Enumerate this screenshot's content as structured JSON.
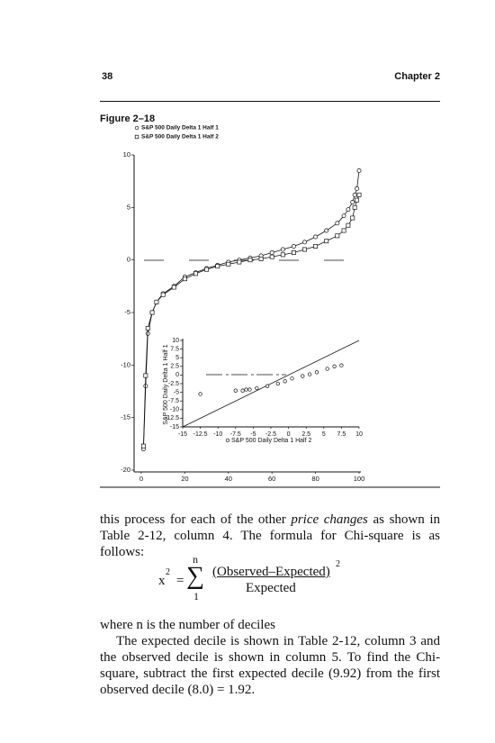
{
  "header": {
    "page_number": "38",
    "chapter": "Chapter 2"
  },
  "figure_label": "Figure 2–18",
  "chart_data": [
    {
      "type": "line",
      "x": [
        1,
        2,
        3,
        5,
        7,
        10,
        15,
        20,
        25,
        30,
        35,
        40,
        45,
        50,
        55,
        60,
        65,
        70,
        75,
        80,
        85,
        90,
        93,
        95,
        97,
        98,
        99,
        100
      ],
      "series": [
        {
          "name": "S&P 500 Daily Delta 1 Half 1",
          "marker": "circle",
          "color": "#111111",
          "values": [
            -18,
            -12,
            -7,
            -5,
            -4,
            -3.2,
            -2.5,
            -1.6,
            -1.2,
            -0.8,
            -0.5,
            -0.2,
            0,
            0.2,
            0.4,
            0.7,
            1,
            1.3,
            1.7,
            2.2,
            2.8,
            3.5,
            4.2,
            4.8,
            5.5,
            6.2,
            6.8,
            8.5
          ]
        },
        {
          "name": "S&P 500 Daily Delta 1 Half 2",
          "marker": "square",
          "color": "#111111",
          "values": [
            -17.7,
            -11,
            -6.5,
            -5,
            -4,
            -3.3,
            -2.6,
            -1.8,
            -1.3,
            -0.9,
            -0.6,
            -0.4,
            -0.2,
            0,
            0.1,
            0.3,
            0.5,
            0.7,
            1,
            1.3,
            1.8,
            2.3,
            2.8,
            3.3,
            4,
            5,
            5.7,
            6.2
          ]
        }
      ],
      "xlim": [
        0,
        100
      ],
      "xticks": [
        0,
        20,
        40,
        60,
        80,
        100
      ],
      "ylim": [
        -20,
        10
      ],
      "yticks": [
        -20,
        -15,
        -10,
        -5,
        0,
        5,
        10
      ]
    },
    {
      "type": "scatter",
      "xlabel": "S&P 500 Daily Delta 1 Half 2",
      "ylabel": "S&P 500 Daily Delta 1 Half 1",
      "marker": "circle",
      "color": "#111111",
      "x": [
        -12.5,
        -7.5,
        -6.5,
        -6,
        -5.5,
        -4.5,
        -3,
        -1.5,
        -0.5,
        0.5,
        2,
        3,
        4,
        5.5,
        6.5,
        7.5
      ],
      "values": [
        -5.5,
        -4.5,
        -4.5,
        -4.2,
        -4.2,
        -3.8,
        -3.2,
        -2.5,
        -1.8,
        -1,
        -0.3,
        0.2,
        0.8,
        1.8,
        2.5,
        2.8
      ],
      "xlim": [
        -15,
        10
      ],
      "xticks": [
        -15,
        -12.5,
        -10,
        -7.5,
        -5,
        -2.5,
        0,
        2.5,
        5,
        7.5,
        10
      ],
      "ylim": [
        -15,
        10
      ],
      "yticks": [
        -15,
        -12.5,
        -10,
        -7.5,
        -5,
        -2.5,
        0,
        2.5,
        5,
        7.5,
        10
      ]
    }
  ],
  "body": {
    "p1": [
      "this process for each of the other ",
      "price changes",
      " as shown in Table 2-12, column 4. The formula for Chi-square is as follows:"
    ],
    "formula": {
      "lhs": "x",
      "lhs_exp": "2",
      "equals": "=",
      "sigma": "∑",
      "upper": "n",
      "lower": "1",
      "numerator": "(Observed–Expected)",
      "numerator_exp": "2",
      "denominator": "Expected"
    },
    "p2": "where n is the number of deciles",
    "p3": "The expected decile is shown in Table 2-12, column 3 and the observed decile is shown in column 5. To find the Chi-square, subtract the first expected decile (9.92) from the first observed decile (8.0) = 1.92."
  }
}
